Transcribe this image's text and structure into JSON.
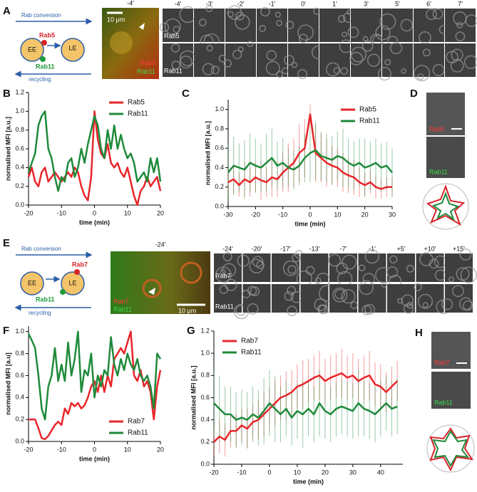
{
  "chart_data": [
    {
      "type": "line",
      "xlabel": "time (min)",
      "ylabel": "normalised MFI [a.u.]",
      "x": [
        -20,
        -19,
        -18,
        -17,
        -16,
        -15,
        -14,
        -13,
        -12,
        -11,
        -10,
        -9,
        -8,
        -7,
        -6,
        -5,
        -4,
        -3,
        -2,
        -1,
        0,
        1,
        2,
        3,
        4,
        5,
        6,
        7,
        8,
        9,
        10,
        11,
        12,
        13,
        14,
        15,
        16,
        17,
        18,
        19,
        20
      ],
      "series": [
        {
          "name": "Rab5",
          "color": "#e8262b",
          "values": [
            0.3,
            0.4,
            0.25,
            0.2,
            0.35,
            0.4,
            0.25,
            0.3,
            0.35,
            0.3,
            0.25,
            0.3,
            0.35,
            0.3,
            0.4,
            0.35,
            0.2,
            0.1,
            0.05,
            0.3,
            1.0,
            0.7,
            0.55,
            0.5,
            0.65,
            0.45,
            0.4,
            0.45,
            0.35,
            0.3,
            0.4,
            0.25,
            0.1,
            0.0,
            0.15,
            0.2,
            0.3,
            0.2,
            0.25,
            0.3,
            0.15
          ]
        },
        {
          "name": "Rab11",
          "color": "#1f8a3b",
          "values": [
            0.35,
            0.45,
            0.55,
            0.85,
            0.95,
            1.0,
            0.6,
            0.5,
            0.3,
            0.15,
            0.3,
            0.25,
            0.45,
            0.5,
            0.3,
            0.4,
            0.6,
            0.45,
            0.65,
            0.8,
            0.95,
            0.85,
            0.6,
            0.5,
            0.8,
            0.6,
            0.85,
            0.6,
            0.75,
            0.6,
            0.5,
            0.55,
            0.45,
            0.25,
            0.3,
            0.35,
            0.25,
            0.5,
            0.35,
            0.5,
            0.25
          ]
        }
      ],
      "xlim": [
        -20,
        20
      ],
      "ylim": [
        0,
        1.2
      ],
      "xticks": [
        -20,
        -10,
        0,
        10,
        20
      ],
      "yticks": [
        {
          "value": 0,
          "label": "0.0"
        },
        0.2,
        0.4,
        0.6,
        0.8,
        {
          "value": 1,
          "label": "1.0"
        },
        1.2
      ],
      "legend": "upper right"
    },
    {
      "type": "line",
      "xlabel": "time (min)",
      "ylabel": "normalised MFI [a.u.]",
      "x": [
        -30,
        -28,
        -26,
        -24,
        -22,
        -20,
        -18,
        -16,
        -14,
        -12,
        -10,
        -8,
        -6,
        -4,
        -2,
        0,
        2,
        4,
        6,
        8,
        10,
        12,
        14,
        16,
        18,
        20,
        22,
        24,
        26,
        28,
        30
      ],
      "series": [
        {
          "name": "Rab5",
          "color": "#e8262b",
          "values": [
            0.25,
            0.28,
            0.22,
            0.28,
            0.25,
            0.3,
            0.27,
            0.25,
            0.3,
            0.28,
            0.35,
            0.4,
            0.45,
            0.55,
            0.6,
            0.95,
            0.55,
            0.5,
            0.45,
            0.42,
            0.4,
            0.35,
            0.32,
            0.3,
            0.25,
            0.22,
            0.25,
            0.2,
            0.18,
            0.2,
            0.2
          ],
          "errors": [
            0.12,
            0.15,
            0.12,
            0.18,
            0.15,
            0.15,
            0.2,
            0.15,
            0.2,
            0.18,
            0.2,
            0.25,
            0.25,
            0.3,
            0.3,
            0.1,
            0.3,
            0.25,
            0.25,
            0.2,
            0.2,
            0.2,
            0.18,
            0.18,
            0.15,
            0.12,
            0.12,
            0.12,
            0.1,
            0.1,
            0.1
          ]
        },
        {
          "name": "Rab11",
          "color": "#1f8a3b",
          "values": [
            0.35,
            0.42,
            0.4,
            0.38,
            0.45,
            0.42,
            0.4,
            0.45,
            0.5,
            0.42,
            0.45,
            0.4,
            0.38,
            0.42,
            0.5,
            0.55,
            0.58,
            0.52,
            0.5,
            0.48,
            0.52,
            0.5,
            0.45,
            0.42,
            0.45,
            0.4,
            0.42,
            0.45,
            0.4,
            0.42,
            0.35
          ],
          "errors": [
            0.3,
            0.3,
            0.25,
            0.3,
            0.3,
            0.28,
            0.25,
            0.3,
            0.3,
            0.25,
            0.25,
            0.2,
            0.2,
            0.2,
            0.25,
            0.3,
            0.3,
            0.25,
            0.25,
            0.25,
            0.25,
            0.3,
            0.25,
            0.25,
            0.25,
            0.3,
            0.25,
            0.25,
            0.25,
            0.25,
            0.25
          ]
        }
      ],
      "xlim": [
        -30,
        30
      ],
      "ylim": [
        0,
        1.1
      ],
      "xticks": [
        -30,
        -20,
        -10,
        0,
        10,
        20,
        30
      ],
      "yticks": [
        {
          "value": 0,
          "label": "0.0"
        },
        0.2,
        0.4,
        0.6,
        0.8,
        {
          "value": 1,
          "label": "1.0"
        }
      ],
      "legend": "upper right"
    },
    {
      "type": "line",
      "xlabel": "time (min)",
      "ylabel": "normalised MFI [a.u]",
      "x": [
        -20,
        -19,
        -18,
        -17,
        -16,
        -15,
        -14,
        -13,
        -12,
        -11,
        -10,
        -9,
        -8,
        -7,
        -6,
        -5,
        -4,
        -3,
        -2,
        -1,
        0,
        1,
        2,
        3,
        4,
        5,
        6,
        7,
        8,
        9,
        10,
        11,
        12,
        13,
        14,
        15,
        16,
        17,
        18,
        19,
        20
      ],
      "series": [
        {
          "name": "Rab7",
          "color": "#e8262b",
          "values": [
            0.2,
            0.2,
            0.2,
            0.12,
            0.03,
            0.02,
            0.05,
            0.1,
            0.15,
            0.18,
            0.15,
            0.3,
            0.25,
            0.35,
            0.32,
            0.35,
            0.3,
            0.33,
            0.4,
            0.5,
            0.55,
            0.45,
            0.6,
            0.45,
            0.6,
            0.5,
            0.75,
            0.8,
            0.85,
            0.8,
            0.9,
            1.0,
            0.6,
            0.55,
            0.65,
            0.5,
            0.55,
            0.45,
            0.2,
            0.5,
            0.65
          ]
        },
        {
          "name": "Rab11",
          "color": "#1f8a3b",
          "values": [
            0.98,
            0.92,
            0.85,
            0.6,
            0.3,
            0.2,
            0.5,
            0.6,
            0.85,
            0.55,
            0.7,
            0.55,
            0.9,
            0.6,
            0.75,
            1.0,
            0.45,
            0.65,
            0.6,
            0.8,
            0.4,
            0.6,
            0.5,
            0.65,
            0.6,
            0.95,
            0.7,
            0.6,
            0.75,
            0.65,
            0.8,
            0.7,
            0.65,
            0.75,
            0.6,
            0.55,
            0.6,
            0.5,
            0.3,
            0.8,
            0.75
          ]
        }
      ],
      "xlim": [
        -20,
        20
      ],
      "ylim": [
        0,
        1.05
      ],
      "xticks": [
        -20,
        -10,
        0,
        10,
        20
      ],
      "yticks": [
        {
          "value": 0,
          "label": "0.0"
        },
        0.2,
        0.4,
        0.6,
        0.8,
        {
          "value": 1,
          "label": "1.0"
        }
      ],
      "legend": "lower right"
    },
    {
      "type": "line",
      "xlabel": "time (min)",
      "ylabel": "normalised MFI [a.u.]",
      "x": [
        -20,
        -18,
        -16,
        -14,
        -12,
        -10,
        -8,
        -6,
        -4,
        -2,
        0,
        2,
        4,
        6,
        8,
        10,
        12,
        14,
        16,
        18,
        20,
        22,
        24,
        26,
        28,
        30,
        32,
        34,
        36,
        38,
        40,
        42,
        44,
        46
      ],
      "series": [
        {
          "name": "Rab7",
          "color": "#e8262b",
          "values": [
            0.2,
            0.25,
            0.22,
            0.3,
            0.3,
            0.35,
            0.32,
            0.38,
            0.4,
            0.45,
            0.5,
            0.55,
            0.6,
            0.62,
            0.65,
            0.7,
            0.72,
            0.75,
            0.78,
            0.8,
            0.75,
            0.78,
            0.8,
            0.82,
            0.78,
            0.8,
            0.75,
            0.78,
            0.8,
            0.72,
            0.7,
            0.65,
            0.7,
            0.75
          ],
          "errors": [
            0.12,
            0.15,
            0.15,
            0.15,
            0.15,
            0.15,
            0.18,
            0.15,
            0.18,
            0.2,
            0.2,
            0.2,
            0.2,
            0.22,
            0.2,
            0.2,
            0.22,
            0.2,
            0.2,
            0.22,
            0.2,
            0.2,
            0.2,
            0.22,
            0.2,
            0.2,
            0.2,
            0.2,
            0.22,
            0.2,
            0.2,
            0.18,
            0.18,
            0.18
          ]
        },
        {
          "name": "Rab11",
          "color": "#1f8a3b",
          "values": [
            0.55,
            0.5,
            0.45,
            0.45,
            0.4,
            0.42,
            0.4,
            0.45,
            0.42,
            0.48,
            0.55,
            0.5,
            0.45,
            0.5,
            0.42,
            0.48,
            0.45,
            0.5,
            0.45,
            0.55,
            0.48,
            0.45,
            0.5,
            0.52,
            0.5,
            0.48,
            0.55,
            0.5,
            0.48,
            0.45,
            0.5,
            0.55,
            0.5,
            0.52
          ],
          "errors": [
            0.3,
            0.3,
            0.25,
            0.25,
            0.25,
            0.25,
            0.25,
            0.25,
            0.25,
            0.3,
            0.3,
            0.3,
            0.25,
            0.25,
            0.25,
            0.25,
            0.3,
            0.25,
            0.25,
            0.3,
            0.25,
            0.25,
            0.25,
            0.25,
            0.25,
            0.25,
            0.3,
            0.25,
            0.25,
            0.25,
            0.25,
            0.25,
            0.25,
            0.25
          ]
        }
      ],
      "xlim": [
        -20,
        48
      ],
      "ylim": [
        0,
        1.2
      ],
      "xticks": [
        -20,
        -10,
        0,
        10,
        20,
        30,
        40
      ],
      "yticks": [
        {
          "value": 0,
          "label": "0.0"
        },
        0.2,
        0.4,
        0.6,
        0.8,
        {
          "value": 1,
          "label": "1.0"
        },
        1.2
      ],
      "legend": "upper left"
    }
  ],
  "panels": {
    "A": {
      "letter": "A",
      "diagram": {
        "top": "Rab conversion",
        "marker": "Rab5",
        "left": "EE",
        "right": "LE",
        "bottom_marker": "Rab11",
        "bottom": "recycling"
      },
      "overview": {
        "time": "-4'",
        "scale": "10 μm",
        "channels": [
          "Rab5",
          "Rab11"
        ]
      },
      "times": [
        "-4'",
        "-3'",
        "-2'",
        "-1'",
        "0'",
        "1'",
        "3'",
        "5'",
        "6'",
        "7'"
      ],
      "rows": [
        "Rab5",
        "Rab11"
      ]
    },
    "B": {
      "letter": "B"
    },
    "C": {
      "letter": "C"
    },
    "D": {
      "letter": "D",
      "rows": [
        "Rab5",
        "Rab11"
      ]
    },
    "E": {
      "letter": "E",
      "diagram": {
        "top": "Rab conversion",
        "marker": "Rab7",
        "left": "EE",
        "right": "LE",
        "bottom_marker": "Rab11",
        "bottom": "recycling"
      },
      "overview": {
        "time": "-24'",
        "scale": "10 μm",
        "channels": [
          "Rab7",
          "Rab11"
        ]
      },
      "times": [
        "-24'",
        "-20'",
        "-17'",
        "-13'",
        "-7'",
        "-1'",
        "+5'",
        "+10'",
        "+15'"
      ],
      "rows": [
        "Rab7",
        "Rab11"
      ]
    },
    "F": {
      "letter": "F"
    },
    "G": {
      "letter": "G"
    },
    "H": {
      "letter": "H",
      "rows": [
        "Rab7",
        "Rab11"
      ]
    }
  }
}
